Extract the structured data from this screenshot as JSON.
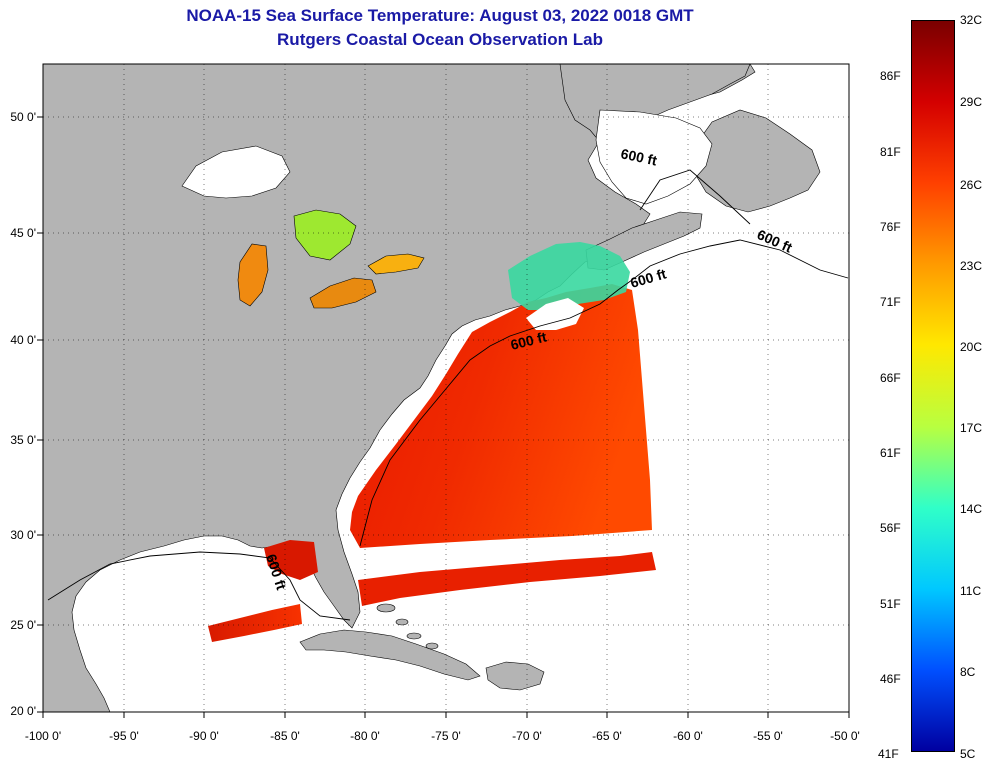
{
  "title": "NOAA-15 Sea Surface Temperature:  August 03, 2022 0018 GMT",
  "subtitle": "Rutgers Coastal Ocean Observation Lab",
  "lat_labels": [
    "50 0'",
    "45 0'",
    "40 0'",
    "35 0'",
    "30 0'",
    "25 0'",
    "20 0'"
  ],
  "lon_labels": [
    "-100 0'",
    "-95 0'",
    "-90 0'",
    "-85 0'",
    "-80 0'",
    "-75 0'",
    "-70 0'",
    "-65 0'",
    "-60 0'",
    "-55 0'",
    "-50 0'"
  ],
  "contour_labels": [
    "600 ft",
    "600 ft",
    "600 ft",
    "600 ft",
    "600 ft"
  ],
  "colorbar": {
    "celsius": [
      "32C",
      "29C",
      "26C",
      "23C",
      "20C",
      "17C",
      "14C",
      "11C",
      "8C",
      "5C"
    ],
    "fahrenheit": [
      "86F",
      "81F",
      "76F",
      "71F",
      "66F",
      "61F",
      "56F",
      "51F",
      "46F",
      "41F"
    ],
    "colors": [
      "#7a0000",
      "#d40000",
      "#ff4000",
      "#ff9a00",
      "#ffe800",
      "#b8ff40",
      "#30ffc8",
      "#00c8ff",
      "#0050ff",
      "#0000a0"
    ]
  },
  "colors": {
    "land": "#b4b4b4",
    "no_data": "#ffffff",
    "title": "#1a1aa6"
  }
}
